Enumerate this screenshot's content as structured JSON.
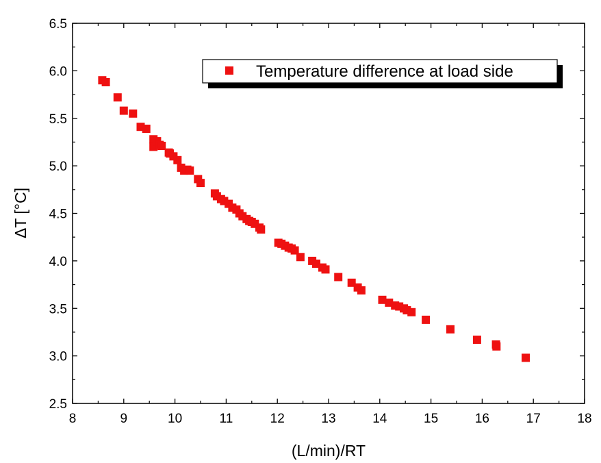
{
  "chart_data": {
    "type": "scatter",
    "xlabel": "(L/min)/RT",
    "ylabel": "ΔT [°C]",
    "xlim": [
      8,
      18
    ],
    "ylim": [
      2.5,
      6.5
    ],
    "xticks": [
      "8",
      "9",
      "10",
      "11",
      "12",
      "13",
      "14",
      "15",
      "16",
      "17",
      "18"
    ],
    "yticks": [
      "2.5",
      "3.0",
      "3.5",
      "4.0",
      "4.5",
      "5.0",
      "5.5",
      "6.0",
      "6.5"
    ],
    "legend_position": "top-right",
    "series": [
      {
        "name": "Temperature difference at load side",
        "color": "#ee1111",
        "marker": "square",
        "points": [
          [
            8.58,
            5.9
          ],
          [
            8.65,
            5.88
          ],
          [
            8.88,
            5.72
          ],
          [
            9.0,
            5.58
          ],
          [
            9.18,
            5.55
          ],
          [
            9.33,
            5.41
          ],
          [
            9.44,
            5.39
          ],
          [
            9.58,
            5.28
          ],
          [
            9.58,
            5.2
          ],
          [
            9.65,
            5.26
          ],
          [
            9.7,
            5.22
          ],
          [
            9.74,
            5.21
          ],
          [
            9.88,
            5.14
          ],
          [
            9.9,
            5.13
          ],
          [
            9.97,
            5.1
          ],
          [
            10.05,
            5.06
          ],
          [
            10.12,
            4.98
          ],
          [
            10.18,
            4.95
          ],
          [
            10.24,
            4.96
          ],
          [
            10.29,
            4.95
          ],
          [
            10.45,
            4.86
          ],
          [
            10.5,
            4.82
          ],
          [
            10.78,
            4.71
          ],
          [
            10.82,
            4.68
          ],
          [
            10.9,
            4.65
          ],
          [
            10.96,
            4.63
          ],
          [
            11.05,
            4.6
          ],
          [
            11.12,
            4.56
          ],
          [
            11.2,
            4.54
          ],
          [
            11.26,
            4.5
          ],
          [
            11.32,
            4.47
          ],
          [
            11.4,
            4.44
          ],
          [
            11.45,
            4.42
          ],
          [
            11.5,
            4.41
          ],
          [
            11.56,
            4.39
          ],
          [
            11.65,
            4.35
          ],
          [
            11.68,
            4.33
          ],
          [
            12.02,
            4.19
          ],
          [
            12.08,
            4.18
          ],
          [
            12.15,
            4.16
          ],
          [
            12.22,
            4.14
          ],
          [
            12.28,
            4.13
          ],
          [
            12.34,
            4.11
          ],
          [
            12.45,
            4.04
          ],
          [
            12.68,
            4.0
          ],
          [
            12.76,
            3.97
          ],
          [
            12.88,
            3.93
          ],
          [
            12.94,
            3.91
          ],
          [
            13.19,
            3.83
          ],
          [
            13.45,
            3.77
          ],
          [
            13.57,
            3.72
          ],
          [
            13.64,
            3.69
          ],
          [
            14.05,
            3.59
          ],
          [
            14.18,
            3.56
          ],
          [
            14.3,
            3.53
          ],
          [
            14.38,
            3.52
          ],
          [
            14.47,
            3.5
          ],
          [
            14.53,
            3.48
          ],
          [
            14.62,
            3.46
          ],
          [
            14.9,
            3.38
          ],
          [
            15.38,
            3.28
          ],
          [
            15.9,
            3.17
          ],
          [
            16.27,
            3.12
          ],
          [
            16.28,
            3.1
          ],
          [
            16.85,
            2.98
          ]
        ]
      }
    ]
  }
}
